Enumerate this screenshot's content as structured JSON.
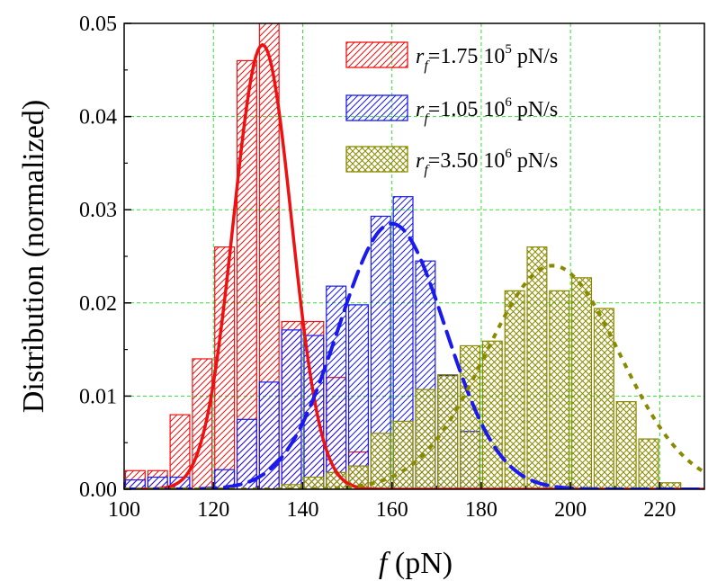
{
  "chart_data": {
    "type": "bar",
    "xlabel_symbol": "f",
    "xlabel_unit": " (pN)",
    "ylabel": "Distribution (normalized)",
    "xlim": [
      100,
      230
    ],
    "ylim": [
      0,
      0.05
    ],
    "x_ticks": [
      "100",
      "120",
      "140",
      "160",
      "180",
      "200",
      "220"
    ],
    "y_ticks": [
      "0.00",
      "0.01",
      "0.02",
      "0.03",
      "0.04",
      "0.05"
    ],
    "grid": true,
    "legend_position": "top-right",
    "series": [
      {
        "name_symbol": "r",
        "name_sub": "f",
        "name_text": "=1.75 10",
        "name_sup": "5",
        "name_unit": " pN/s",
        "color": "#ee1111",
        "hatch": "single-diagonal",
        "curve": "solid",
        "bins": [
          [
            100,
            0.002
          ],
          [
            105,
            0.002
          ],
          [
            110,
            0.008
          ],
          [
            115,
            0.014
          ],
          [
            120,
            0.026
          ],
          [
            125,
            0.046
          ],
          [
            130,
            0.05
          ],
          [
            135,
            0.018
          ],
          [
            140,
            0.018
          ],
          [
            145,
            0.012
          ],
          [
            150,
            0.004
          ]
        ],
        "fit": {
          "mean": 131,
          "sigma": 6.5,
          "peak": 0.0477
        }
      },
      {
        "name_symbol": "r",
        "name_sub": "f",
        "name_text": "=1.05 10",
        "name_sup": "6",
        "name_unit": " pN/s",
        "color": "#1a1aee",
        "hatch": "single-diagonal",
        "curve": "dashed",
        "bins": [
          [
            100,
            0.001
          ],
          [
            105,
            0.0013
          ],
          [
            110,
            0.0013
          ],
          [
            120,
            0.0021
          ],
          [
            125,
            0.0075
          ],
          [
            130,
            0.0115
          ],
          [
            135,
            0.0171
          ],
          [
            140,
            0.0165
          ],
          [
            145,
            0.0218
          ],
          [
            150,
            0.0198
          ],
          [
            155,
            0.0293
          ],
          [
            160,
            0.0314
          ],
          [
            165,
            0.0245
          ],
          [
            170,
            0.0122
          ],
          [
            175,
            0.0062
          ]
        ],
        "fit": {
          "mean": 160,
          "sigma": 12,
          "peak": 0.0285
        }
      },
      {
        "name_symbol": "r",
        "name_sub": "f",
        "name_text": "=3.50 10",
        "name_sup": "6",
        "name_unit": " pN/s",
        "color": "#8a8a00",
        "hatch": "crosshatch",
        "curve": "dotted",
        "bins": [
          [
            135,
            0.0005
          ],
          [
            140,
            0.0013
          ],
          [
            145,
            0.0018
          ],
          [
            150,
            0.0025
          ],
          [
            155,
            0.006
          ],
          [
            160,
            0.0073
          ],
          [
            165,
            0.0107
          ],
          [
            170,
            0.0123
          ],
          [
            175,
            0.0154
          ],
          [
            180,
            0.0159
          ],
          [
            185,
            0.0213
          ],
          [
            190,
            0.026
          ],
          [
            195,
            0.0213
          ],
          [
            200,
            0.0227
          ],
          [
            205,
            0.0194
          ],
          [
            210,
            0.0094
          ],
          [
            215,
            0.0054
          ],
          [
            220,
            0.0007
          ]
        ],
        "fit": {
          "mean": 196,
          "sigma": 15,
          "peak": 0.024
        }
      }
    ],
    "bin_width": 5
  }
}
